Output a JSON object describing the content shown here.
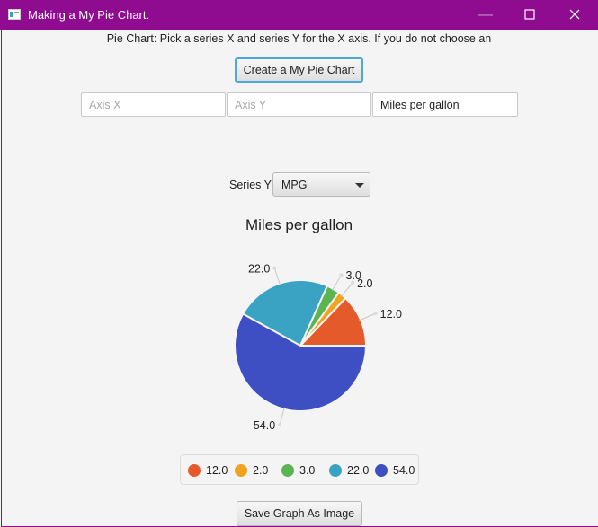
{
  "window": {
    "title": "Making a My Pie Chart.",
    "minimize_icon": "minimize-icon",
    "maximize_icon": "maximize-icon",
    "close_icon": "close-icon"
  },
  "info_text": "Pie Chart: Pick a series X and series Y for the X axis. If you do not choose an",
  "create_button_label": "Create a My Pie Chart",
  "fields": {
    "axis_x_placeholder": "Axis X",
    "axis_y_placeholder": "Axis Y",
    "title_value": "Miles per gallon"
  },
  "series_y": {
    "label": "Series Y:",
    "selected": "MPG"
  },
  "colors": {
    "titlebar": "#8f0b8f",
    "focus": "#4fa7d8"
  },
  "chart_data": {
    "type": "pie",
    "title": "Miles per gallon",
    "categories": [
      "12.0",
      "2.0",
      "3.0",
      "22.0",
      "54.0"
    ],
    "values": [
      12.0,
      2.0,
      3.0,
      22.0,
      54.0
    ],
    "slice_labels": [
      "12.0",
      "2.0",
      "3.0",
      "22.0",
      "54.0"
    ],
    "colors": [
      "#e45a2a",
      "#efa31f",
      "#5bb452",
      "#3aa3c4",
      "#3e4fc4"
    ],
    "legend_position": "bottom"
  },
  "save_button_label": "Save Graph As Image"
}
